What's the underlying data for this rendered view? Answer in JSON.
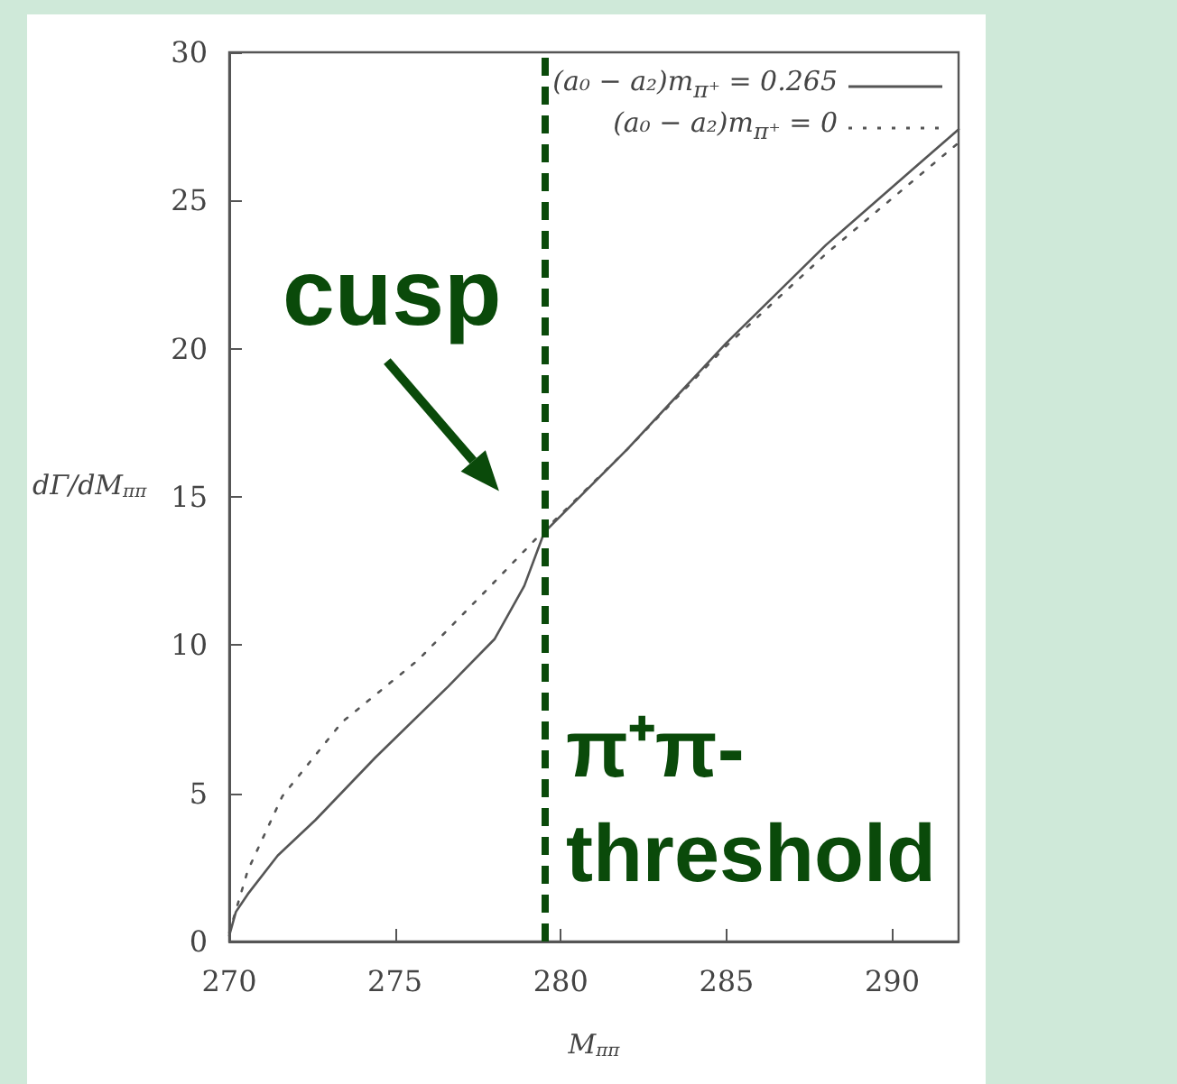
{
  "chart_data": {
    "type": "line",
    "xlabel": "M$_{ππ}$",
    "ylabel": "dΓ/dM$_{ππ}$",
    "xlim": [
      270,
      292
    ],
    "xticks": [
      270,
      275,
      280,
      285,
      290
    ],
    "ylim": [
      0,
      30
    ],
    "yticks": [
      0,
      5,
      10,
      15,
      20,
      25,
      30
    ],
    "grid": false,
    "legend": "top right",
    "series": [
      {
        "name": "(a₀ − a₂)m$_{π⁺}$ = 0.265",
        "color": "#555555",
        "line_style": "solid",
        "x": [
          270,
          270.2,
          270.56,
          271.46,
          272.6,
          274.4,
          276.6,
          278.0,
          278.9,
          279.5,
          282,
          285,
          288,
          292
        ],
        "values": [
          0.2,
          1.0,
          1.6,
          2.9,
          4.1,
          6.2,
          8.6,
          10.2,
          12.0,
          13.8,
          16.6,
          20.2,
          23.5,
          27.4
        ]
      },
      {
        "name": "(a₀ − a₂)m$_{π⁺}$ = 0",
        "color": "#555555",
        "line_style": "dotted",
        "x": [
          270,
          270.56,
          271.6,
          273.4,
          275.7,
          277.8,
          279.35,
          282,
          285,
          288,
          292
        ],
        "values": [
          0.3,
          2.4,
          4.9,
          7.4,
          9.5,
          11.9,
          13.7,
          16.6,
          20.1,
          23.2,
          26.95
        ]
      }
    ],
    "ref_lines": [
      {
        "axis": "x",
        "value": 279.5,
        "label": "π⁺π- threshold",
        "color": "#0a4a0a",
        "line_style": "dashed"
      }
    ],
    "annotations": [
      {
        "text": "cusp",
        "x": 279.5,
        "y": 13.8
      }
    ]
  }
}
